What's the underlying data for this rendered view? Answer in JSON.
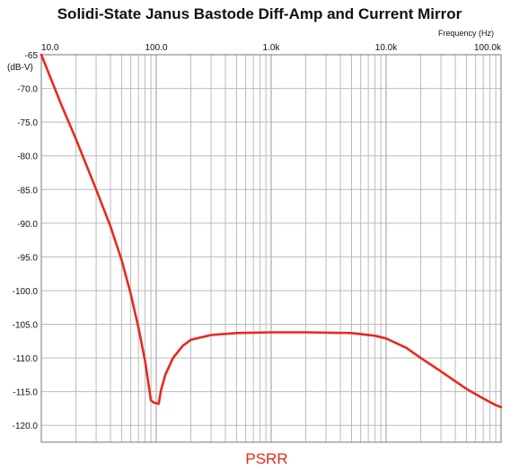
{
  "chart_data": {
    "type": "line",
    "title": "Solidi-State Janus Bastode Diff-Amp and Current Mirror",
    "xlabel": "Frequency   (Hz)",
    "ylabel": "(dB-V)",
    "x_scale": "log",
    "xlim": [
      10,
      100000
    ],
    "ylim": [
      -122.5,
      -65
    ],
    "x_ticks": [
      10,
      100,
      1000,
      10000,
      100000
    ],
    "x_tick_labels": [
      "10.0",
      "100.0",
      "1.0k",
      "10.0k",
      "100.0k"
    ],
    "y_ticks": [
      -65,
      -70,
      -75,
      -80,
      -85,
      -90,
      -95,
      -100,
      -105,
      -110,
      -115,
      -120
    ],
    "y_tick_labels": [
      "-65",
      "-70.0",
      "-75.0",
      "-80.0",
      "-85.0",
      "-90.0",
      "-95.0",
      "-100.0",
      "-105.0",
      "-110.0",
      "-115.0",
      "-120.0"
    ],
    "grid": true,
    "legend": "bottom-center",
    "series": [
      {
        "name": "PSRR",
        "color": "#e8291c",
        "x": [
          10,
          15,
          20,
          30,
          40,
          50,
          60,
          70,
          80,
          90,
          95,
          105,
          110,
          120,
          140,
          170,
          200,
          300,
          500,
          1000,
          2000,
          5000,
          8000,
          10000,
          15000,
          20000,
          30000,
          50000,
          70000,
          90000,
          100000
        ],
        "y": [
          -65,
          -72.5,
          -77.5,
          -85,
          -90.5,
          -95.5,
          -100.5,
          -105.5,
          -110.5,
          -116.3,
          -116.6,
          -116.8,
          -114.8,
          -112.5,
          -110,
          -108.2,
          -107.3,
          -106.6,
          -106.3,
          -106.2,
          -106.2,
          -106.3,
          -106.7,
          -107.1,
          -108.5,
          -110,
          -112,
          -114.6,
          -116,
          -117,
          -117.3
        ]
      }
    ]
  }
}
